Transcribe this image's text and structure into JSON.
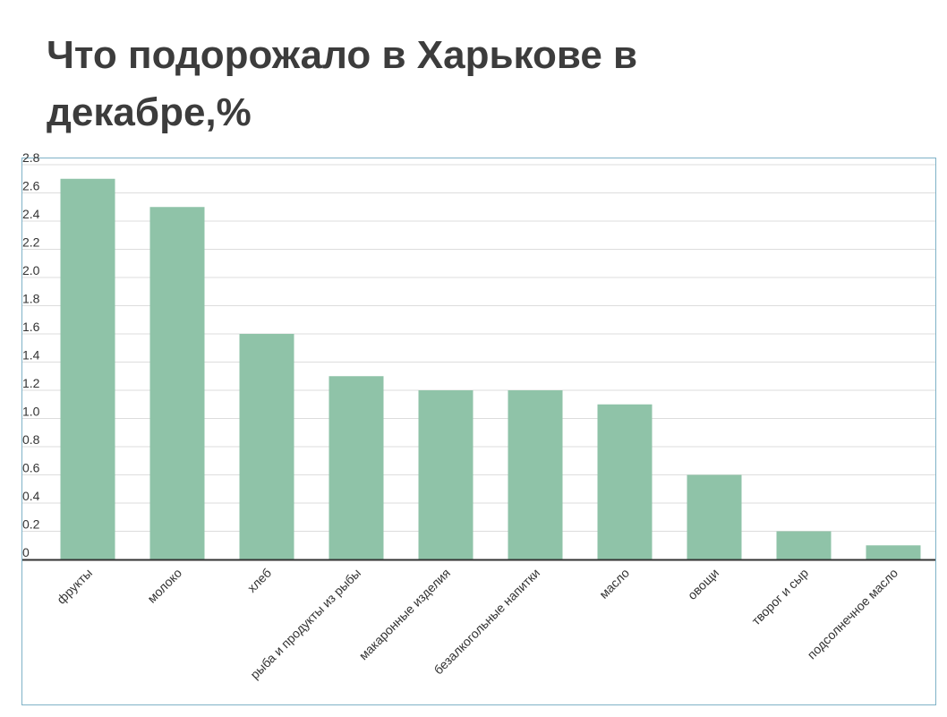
{
  "title": "Что подорожало в Харькове в декабре,%",
  "colors": {
    "bar": "#8fc3a8",
    "grid": "#dddddd",
    "axis": "#333333",
    "frame": "#7fb2c7",
    "title": "#3c3c3c"
  },
  "chart_data": {
    "type": "bar",
    "title": "Что подорожало в Харькове в декабре,%",
    "xlabel": "",
    "ylabel": "",
    "ylim": [
      0,
      2.8
    ],
    "yticks": [
      "0",
      "0.2",
      "0.4",
      "0.6",
      "0.8",
      "1.0",
      "1.2",
      "1.4",
      "1.6",
      "1.8",
      "2.0",
      "2.2",
      "2.4",
      "2.6",
      "2.8"
    ],
    "grid": true,
    "legend": "none",
    "categories": [
      "фрукты",
      "молоко",
      "хлеб",
      "рыба и продукты из рыбы",
      "макаронные изделия",
      "безалкогольные напитки",
      "масло",
      "овощи",
      "творог и сыр",
      "подсолнечное масло"
    ],
    "values": [
      2.7,
      2.5,
      1.6,
      1.3,
      1.2,
      1.2,
      1.1,
      0.6,
      0.2,
      0.1
    ]
  }
}
